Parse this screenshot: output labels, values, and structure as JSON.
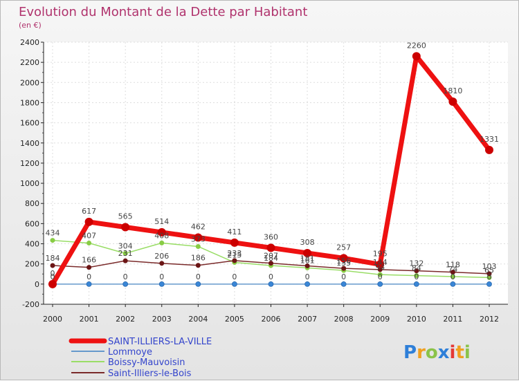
{
  "chart_data": {
    "type": "line",
    "title": "Evolution du Montant de la Dette par Habitant",
    "subtitle": "(en €)",
    "x": [
      "2000",
      "2001",
      "2002",
      "2003",
      "2004",
      "2005",
      "2006",
      "2007",
      "2008",
      "2009",
      "2010",
      "2011",
      "2012"
    ],
    "ylim": [
      -200,
      2400
    ],
    "yticks": [
      -200,
      0,
      200,
      400,
      600,
      800,
      1000,
      1200,
      1400,
      1600,
      1800,
      2000,
      2200,
      2400
    ],
    "grid": true,
    "legend_position": "bottom-left",
    "series": [
      {
        "name": "SAINT-ILLIERS-LA-VILLE",
        "color": "#ee1111",
        "marker": "#cc0000",
        "values": [
          0,
          617,
          565,
          514,
          462,
          411,
          360,
          308,
          257,
          195,
          2260,
          1810,
          1331
        ],
        "labels": [
          "0",
          "617",
          "565",
          "514",
          "462",
          "411",
          "360",
          "308",
          "257",
          "195",
          "2260",
          "1810",
          "1331"
        ]
      },
      {
        "name": "Lommoye",
        "color": "#6699cc",
        "marker": "#3a86d6",
        "values": [
          0,
          0,
          0,
          0,
          0,
          0,
          0,
          0,
          0,
          0,
          0,
          0,
          0
        ],
        "labels": [
          "0",
          "0",
          "0",
          "0",
          "0",
          "0",
          "0",
          "0",
          "0",
          "0",
          "0",
          "0",
          "0"
        ]
      },
      {
        "name": "Boissy-Mauvoisin",
        "color": "#99dd66",
        "marker": "#88cc44",
        "values": [
          434,
          407,
          304,
          408,
          373,
          215,
          184,
          161,
          135,
          94,
          84,
          74,
          65
        ],
        "labels": [
          "434",
          "407",
          "304",
          "408",
          "373",
          "215",
          "184",
          "161",
          "135",
          "94",
          "84",
          "74",
          "65"
        ]
      },
      {
        "name": "Saint-Illiers-le-Bois",
        "color": "#7a2a2a",
        "marker": "#6b1515",
        "values": [
          184,
          166,
          231,
          206,
          186,
          233,
          207,
          181,
          156,
          144,
          132,
          118,
          103
        ],
        "labels": [
          "184",
          "166",
          "231",
          "206",
          "186",
          "233",
          "207",
          "181",
          "156",
          "144",
          "132",
          "118",
          "103"
        ]
      }
    ]
  },
  "logo": {
    "text": "Proxiti"
  }
}
